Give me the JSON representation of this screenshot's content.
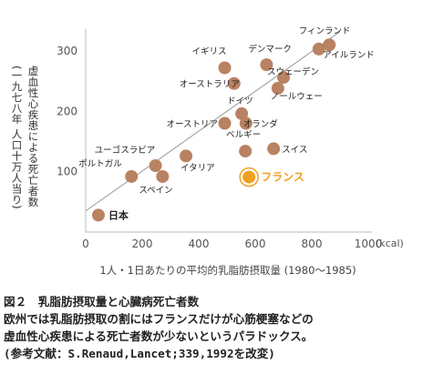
{
  "chart_data": {
    "type": "scatter",
    "xlabel": "1人・1日あたりの平均的乳脂肪摂取量 (1980〜1985)",
    "xunit": "(kcal)",
    "ylabel": "虚血性心疾患による死亡者数",
    "ylabel_sub": "(一九七八年 人口十万人当り)",
    "xlim": [
      0,
      1000
    ],
    "ylim": [
      0,
      330
    ],
    "xticks": [
      0,
      200,
      400,
      600,
      800,
      1000
    ],
    "yticks": [
      100,
      200,
      300
    ],
    "trendline": {
      "x": [
        0,
        900
      ],
      "y": [
        35,
        332
      ]
    },
    "points": [
      {
        "label": "フィンランド",
        "x": 825,
        "y": 303
      },
      {
        "label": "アイルランド",
        "x": 862,
        "y": 310
      },
      {
        "label": "デンマーク",
        "x": 640,
        "y": 277
      },
      {
        "label": "イギリス",
        "x": 492,
        "y": 272
      },
      {
        "label": "オーストラリア",
        "x": 525,
        "y": 246
      },
      {
        "label": "スウェーデン",
        "x": 700,
        "y": 256
      },
      {
        "label": "ノールウェー",
        "x": 680,
        "y": 238
      },
      {
        "label": "ドイツ",
        "x": 552,
        "y": 196
      },
      {
        "label": "オーストリア",
        "x": 492,
        "y": 180
      },
      {
        "label": "オランダ",
        "x": 567,
        "y": 180
      },
      {
        "label": "ベルギー",
        "x": 565,
        "y": 134
      },
      {
        "label": "スイス",
        "x": 665,
        "y": 138
      },
      {
        "label": "ユーゴスラビア",
        "x": 247,
        "y": 110
      },
      {
        "label": "ポルトガル",
        "x": 162,
        "y": 92
      },
      {
        "label": "スペイン",
        "x": 272,
        "y": 92
      },
      {
        "label": "イタリア",
        "x": 355,
        "y": 126
      },
      {
        "label": "フランス",
        "x": 578,
        "y": 91,
        "highlight": true
      },
      {
        "label": "日本",
        "x": 45,
        "y": 28
      }
    ],
    "colors": {
      "point": "#b98262",
      "highlight": "#f0a020",
      "trend": "#999999",
      "axis": "#bbbbbb"
    }
  },
  "caption": {
    "title": "図２　乳脂肪摂取量と心臓病死亡者数",
    "line1": "欧州では乳脂肪摂取の割にはフランスだけが心筋梗塞などの",
    "line2": "虚血性心疾患による死亡者数が少ないというパラドックス。",
    "reference": "(参考文献：S.Renaud,Lancet;339,1992を改変)"
  }
}
